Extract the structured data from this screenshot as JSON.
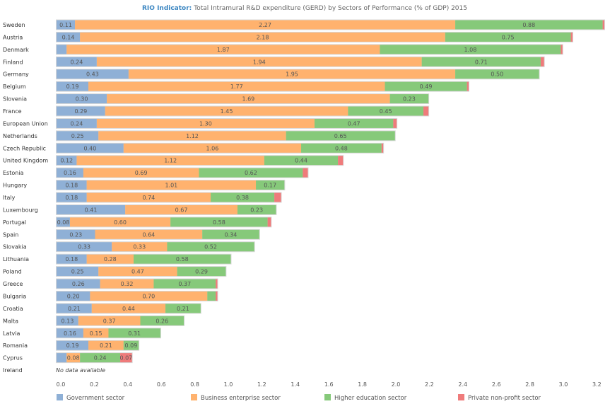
{
  "chart_data": {
    "type": "bar",
    "orientation": "horizontal",
    "stacked": true,
    "title_prefix": "RIO Indicator:",
    "title": "Total Intramural R&D expenditure (GERD) by Sectors of Performance (% of GDP) 2015",
    "xlim": [
      0,
      3.25
    ],
    "x_ticks": [
      "0.0",
      "0.2",
      "0.4",
      "0.6",
      "0.8",
      "1.0",
      "1.2",
      "1.4",
      "1.6",
      "1.8",
      "2.0",
      "2.2",
      "2.4",
      "2.6",
      "2.8",
      "3.0",
      "3.2"
    ],
    "grid": false,
    "legend_position": "bottom",
    "series": [
      {
        "name": "Government sector",
        "color": "#8fb0d6"
      },
      {
        "name": "Business enterprise sector",
        "color": "#ffb26e"
      },
      {
        "name": "Higher education sector",
        "color": "#86c97a"
      },
      {
        "name": "Private non-profit sector",
        "color": "#ef7b7b"
      }
    ],
    "categories": [
      "Sweden",
      "Austria",
      "Denmark",
      "Finland",
      "Germany",
      "Belgium",
      "Slovenia",
      "France",
      "European Union",
      "Netherlands",
      "Czech Republic",
      "United Kingdom",
      "Estonia",
      "Hungary",
      "Italy",
      "Luxembourg",
      "Portugal",
      "Spain",
      "Slovakia",
      "Lithuania",
      "Poland",
      "Greece",
      "Bulgaria",
      "Croatia",
      "Malta",
      "Latvia",
      "Romania",
      "Cyprus",
      "Ireland"
    ],
    "values": [
      [
        0.11,
        2.27,
        0.88,
        0.01
      ],
      [
        0.14,
        2.18,
        0.75,
        0.01
      ],
      [
        0.06,
        1.87,
        1.08,
        0.01
      ],
      [
        0.24,
        1.94,
        0.71,
        0.02
      ],
      [
        0.43,
        1.95,
        0.5,
        0
      ],
      [
        0.19,
        1.77,
        0.49,
        0.01
      ],
      [
        0.3,
        1.69,
        0.23,
        0
      ],
      [
        0.29,
        1.45,
        0.45,
        0.03
      ],
      [
        0.24,
        1.3,
        0.47,
        0.02
      ],
      [
        0.25,
        1.12,
        0.65,
        0
      ],
      [
        0.4,
        1.06,
        0.48,
        0.01
      ],
      [
        0.12,
        1.12,
        0.44,
        0.03
      ],
      [
        0.16,
        0.69,
        0.62,
        0.03
      ],
      [
        0.18,
        1.01,
        0.17,
        0
      ],
      [
        0.18,
        0.74,
        0.38,
        0.04
      ],
      [
        0.41,
        0.67,
        0.23,
        0
      ],
      [
        0.08,
        0.6,
        0.58,
        0.02
      ],
      [
        0.23,
        0.64,
        0.34,
        0
      ],
      [
        0.33,
        0.33,
        0.52,
        0
      ],
      [
        0.18,
        0.28,
        0.58,
        0
      ],
      [
        0.25,
        0.47,
        0.29,
        0
      ],
      [
        0.26,
        0.32,
        0.37,
        0.01
      ],
      [
        0.2,
        0.7,
        0.05,
        0.01
      ],
      [
        0.21,
        0.44,
        0.21,
        0
      ],
      [
        0.13,
        0.37,
        0.26,
        0
      ],
      [
        0.16,
        0.15,
        0.31,
        0
      ],
      [
        0.19,
        0.21,
        0.09,
        0
      ],
      [
        0.06,
        0.08,
        0.24,
        0.07
      ],
      null
    ],
    "no_data_label": "No data available"
  }
}
